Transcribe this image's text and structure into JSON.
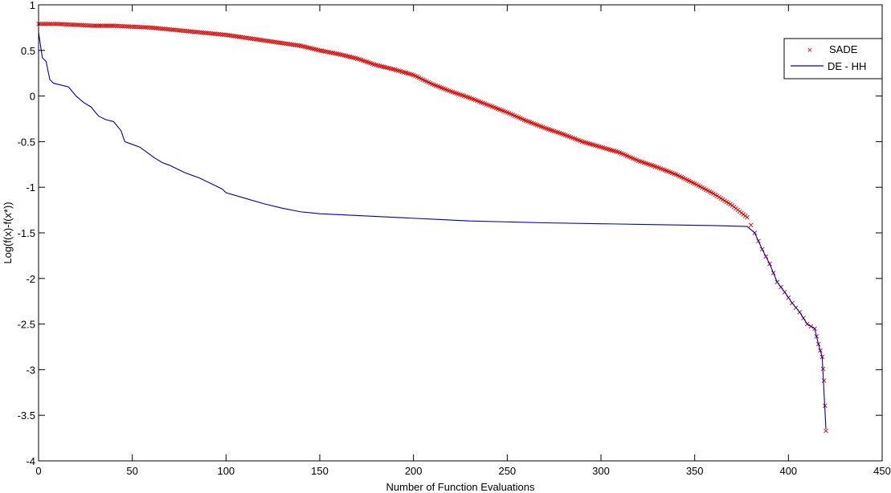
{
  "chart_data": {
    "type": "line",
    "title": "",
    "xlabel": "Number of Function Evaluations",
    "ylabel": "Log(f(x)-f(x*))",
    "xlim": [
      0,
      450
    ],
    "ylim": [
      -4,
      1
    ],
    "xticks": [
      0,
      50,
      100,
      150,
      200,
      250,
      300,
      350,
      400,
      450
    ],
    "yticks": [
      1,
      0.5,
      0,
      -0.5,
      -1,
      -1.5,
      -2,
      -2.5,
      -3,
      -3.5,
      -4
    ],
    "xtick_labels": [
      "0",
      "50",
      "100",
      "150",
      "200",
      "250",
      "300",
      "350",
      "400",
      "450"
    ],
    "ytick_labels": [
      "1",
      "0.5",
      "0",
      "-0.5",
      "-1",
      "-1.5",
      "-2",
      "-2.5",
      "-3",
      "-3.5",
      "-4"
    ],
    "grid": false,
    "legend_position": "upper right",
    "series": [
      {
        "name": "SADE",
        "style": "markers-x",
        "color": "#d40000",
        "x": [
          0,
          10,
          20,
          30,
          40,
          50,
          60,
          70,
          80,
          90,
          100,
          110,
          120,
          130,
          140,
          150,
          160,
          170,
          180,
          190,
          200,
          210,
          220,
          230,
          240,
          250,
          260,
          270,
          280,
          290,
          300,
          310,
          320,
          330,
          340,
          350,
          360,
          370,
          378,
          382,
          386,
          390,
          394,
          398,
          402,
          406,
          410,
          414,
          416,
          418,
          419,
          420
        ],
        "y": [
          0.79,
          0.79,
          0.78,
          0.77,
          0.77,
          0.76,
          0.75,
          0.73,
          0.71,
          0.69,
          0.67,
          0.64,
          0.61,
          0.58,
          0.55,
          0.5,
          0.46,
          0.41,
          0.34,
          0.29,
          0.23,
          0.13,
          0.05,
          -0.02,
          -0.1,
          -0.18,
          -0.27,
          -0.35,
          -0.42,
          -0.5,
          -0.56,
          -0.62,
          -0.71,
          -0.78,
          -0.86,
          -0.96,
          -1.07,
          -1.2,
          -1.33,
          -1.5,
          -1.68,
          -1.84,
          -2.04,
          -2.15,
          -2.27,
          -2.37,
          -2.5,
          -2.55,
          -2.72,
          -2.86,
          -3.12,
          -3.67
        ]
      },
      {
        "name": "DE - HH",
        "style": "line",
        "color": "#0000b4",
        "x": [
          0,
          2,
          4,
          6,
          8,
          12,
          16,
          20,
          24,
          28,
          32,
          36,
          40,
          44,
          46,
          50,
          54,
          58,
          62,
          66,
          70,
          74,
          78,
          82,
          86,
          90,
          94,
          98,
          100,
          110,
          120,
          130,
          140,
          150,
          170,
          190,
          210,
          230,
          250,
          270,
          300,
          330,
          360,
          378,
          382,
          386,
          390,
          394,
          398,
          402,
          406,
          410,
          414,
          416,
          418,
          420
        ],
        "y": [
          0.7,
          0.42,
          0.38,
          0.18,
          0.14,
          0.12,
          0.1,
          0.0,
          -0.07,
          -0.12,
          -0.22,
          -0.26,
          -0.28,
          -0.38,
          -0.5,
          -0.53,
          -0.56,
          -0.62,
          -0.68,
          -0.73,
          -0.76,
          -0.8,
          -0.84,
          -0.87,
          -0.9,
          -0.94,
          -0.98,
          -1.02,
          -1.06,
          -1.12,
          -1.18,
          -1.23,
          -1.27,
          -1.29,
          -1.31,
          -1.33,
          -1.35,
          -1.37,
          -1.38,
          -1.39,
          -1.4,
          -1.41,
          -1.42,
          -1.43,
          -1.5,
          -1.68,
          -1.84,
          -2.04,
          -2.15,
          -2.27,
          -2.37,
          -2.5,
          -2.55,
          -2.72,
          -2.86,
          -3.65
        ]
      }
    ]
  },
  "legend": {
    "items": [
      {
        "label": "SADE",
        "symbol": "×",
        "color": "#d40000"
      },
      {
        "label": "DE - HH",
        "symbol": "line",
        "color": "#0000b4"
      }
    ]
  },
  "axes": {
    "xlabel": "Number of Function Evaluations",
    "ylabel": "Log(f(x)-f(x*))"
  }
}
